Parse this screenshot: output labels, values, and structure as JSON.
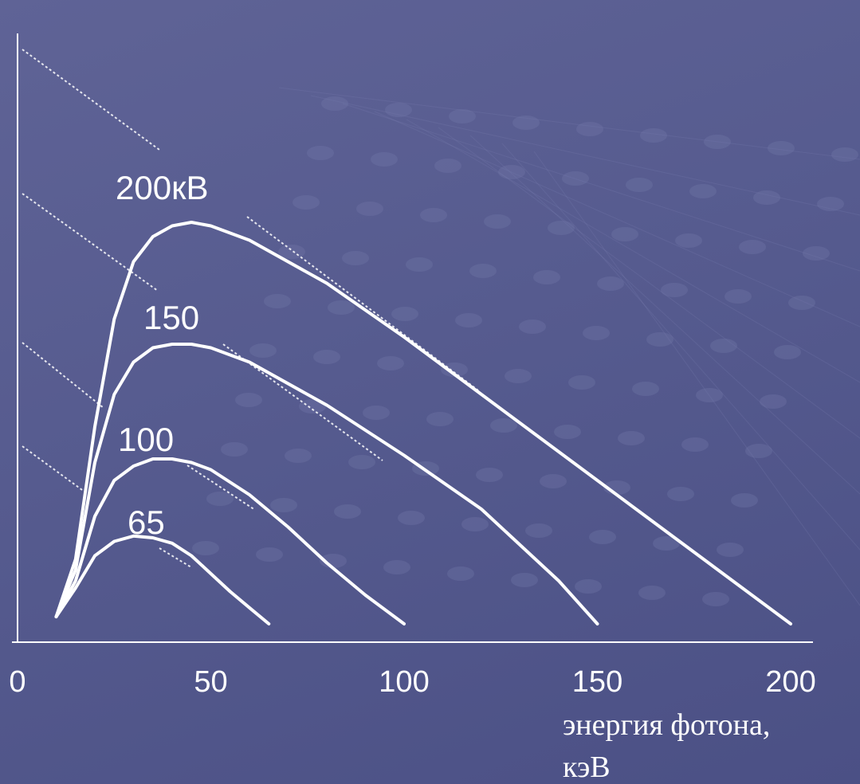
{
  "chart_data": {
    "type": "line",
    "xlabel_lines": [
      "энергия фотона,",
      "кэВ"
    ],
    "ylabel": "",
    "x_ticks": [
      "0",
      "50",
      "100",
      "150",
      "200"
    ],
    "xlim": [
      0,
      210
    ],
    "ylim": [
      0,
      1.65
    ],
    "grid": false,
    "series": [
      {
        "name": "200кВ",
        "kvp": 200,
        "x": [
          10,
          15,
          20,
          25,
          30,
          35,
          40,
          45,
          50,
          60,
          80,
          100,
          120,
          140,
          160,
          180,
          200
        ],
        "values": [
          0.02,
          0.18,
          0.55,
          0.85,
          1.01,
          1.08,
          1.11,
          1.12,
          1.11,
          1.07,
          0.95,
          0.8,
          0.64,
          0.48,
          0.32,
          0.16,
          0.0
        ]
      },
      {
        "name": "150",
        "kvp": 150,
        "x": [
          10,
          15,
          20,
          25,
          30,
          35,
          40,
          45,
          50,
          60,
          80,
          100,
          120,
          140,
          150
        ],
        "values": [
          0.02,
          0.15,
          0.45,
          0.64,
          0.73,
          0.77,
          0.78,
          0.78,
          0.77,
          0.73,
          0.61,
          0.47,
          0.32,
          0.12,
          0.0
        ]
      },
      {
        "name": "100",
        "kvp": 100,
        "x": [
          10,
          15,
          20,
          25,
          30,
          35,
          40,
          45,
          50,
          60,
          70,
          80,
          90,
          100
        ],
        "values": [
          0.02,
          0.12,
          0.3,
          0.4,
          0.44,
          0.46,
          0.46,
          0.45,
          0.43,
          0.36,
          0.27,
          0.17,
          0.08,
          0.0
        ]
      },
      {
        "name": "65",
        "kvp": 65,
        "x": [
          10,
          15,
          20,
          25,
          30,
          35,
          40,
          45,
          50,
          55,
          60,
          65
        ],
        "values": [
          0.02,
          0.1,
          0.19,
          0.23,
          0.245,
          0.24,
          0.225,
          0.19,
          0.14,
          0.09,
          0.045,
          0.0
        ]
      }
    ]
  }
}
